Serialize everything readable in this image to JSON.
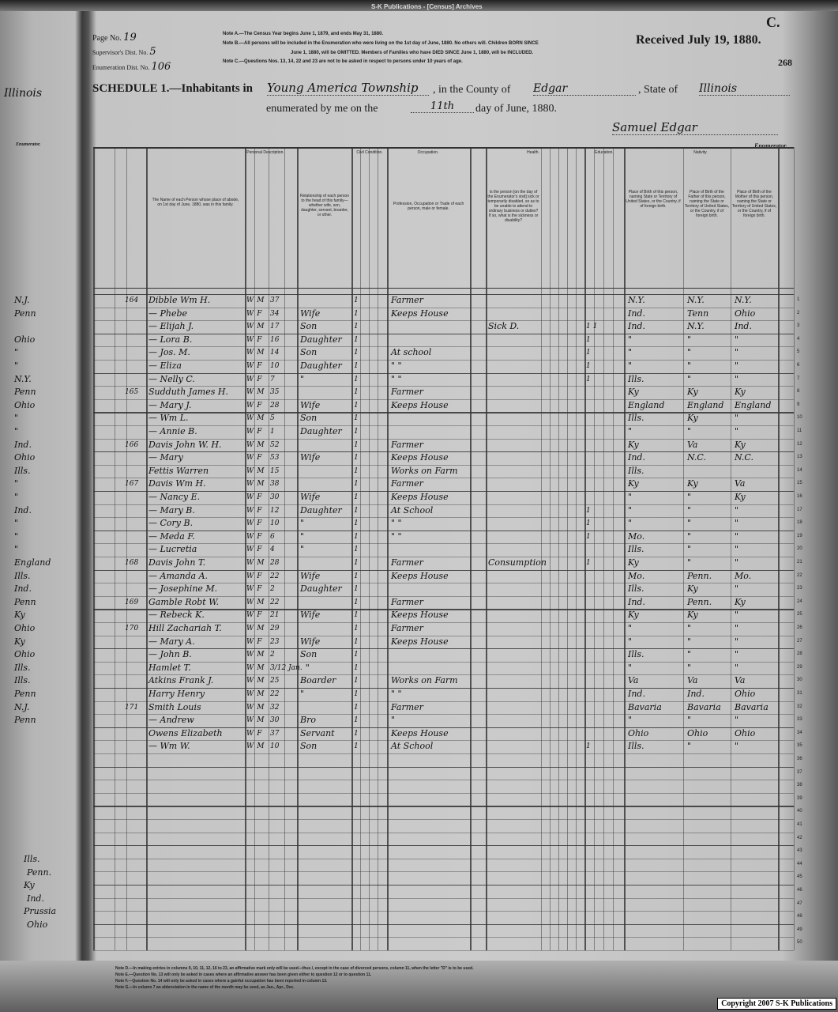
{
  "publisher_header": "S-K Publications - [Census] Archives",
  "form_letter": "C.",
  "received_stamp": "Received July 19, 1880.",
  "stamp_number": "268",
  "page_number_label": "Page No.",
  "page_number": "19",
  "supervisor_label": "Supervisor's Dist. No.",
  "supervisor_dist": "5",
  "enumeration_label": "Enumeration Dist. No.",
  "enumeration_dist": "106",
  "notes": [
    "Note A.—The Census Year begins June 1, 1879, and ends May 31, 1880.",
    "Note B.—All persons will be included in the Enumeration who were living on the 1st day of June, 1880. No others will. Children BORN SINCE",
    "June 1, 1880, will be OMITTED. Members of Families who have DIED SINCE June 1, 1880, will be INCLUDED.",
    "Note C.—Questions Nos. 13, 14, 22 and 23 are not to be asked in respect to persons under 10 years of age."
  ],
  "schedule": {
    "prefix": "SCHEDULE 1.—Inhabitants in",
    "township": "Young America Township",
    "county_label": ", in the County of",
    "county": "Edgar",
    "state_label": ", State of",
    "state": "Illinois",
    "enumerated_label": "enumerated by me on the",
    "day": "11th",
    "day_suffix": "day of June, 1880.",
    "enumerator_signature": "Samuel Edgar",
    "enumerator_label": "Enumerator."
  },
  "column_groups": {
    "personal": "Personal Description.",
    "civil": "Civil Condition.",
    "occupation": "Occupation.",
    "health": "Health.",
    "education": "Education.",
    "nativity": "Nativity.",
    "name_header": "The Name of each Person whose place of abode, on 1st day of June, 1880, was in this family.",
    "relationship_header": "Relationship of each person to the head of this family—whether wife, son, daughter, servant, boarder, or other.",
    "occupation_header": "Profession, Occupation or Trade of each person, male or female.",
    "sickness_header": "Is the person [on the day of the Enumerator's visit] sick or temporarily disabled, so as to be unable to attend to ordinary business or duties? If so, what is the sickness or disability?",
    "birth_header": "Place of Birth of this person, naming State or Territory of United States, or the Country, if of foreign birth.",
    "father_birth_header": "Place of Birth of the Father of this person, naming the State or Territory of United States, or the Country, if of foreign birth.",
    "mother_birth_header": "Place of Birth of the Mother of this person, naming the State or Territory of United States, or the Country, if of foreign birth."
  },
  "rows": [
    {
      "fam": "164",
      "name": "Dibble Wm H.",
      "color": "W",
      "sex": "M",
      "age": "37",
      "rel": "",
      "civil": "1",
      "occ": "Farmer",
      "sick": "",
      "marks": "",
      "birth": "N.Y.",
      "father": "N.Y.",
      "mother": "N.Y."
    },
    {
      "fam": "",
      "name": "— Phebe",
      "color": "W",
      "sex": "F",
      "age": "34",
      "rel": "Wife",
      "civil": "1",
      "occ": "Keeps House",
      "sick": "",
      "marks": "",
      "birth": "Ind.",
      "father": "Tenn",
      "mother": "Ohio"
    },
    {
      "fam": "",
      "name": "— Elijah J.",
      "color": "W",
      "sex": "M",
      "age": "17",
      "rel": "Son",
      "civil": "1",
      "occ": "",
      "sick": "Sick D.",
      "marks": "1 1",
      "birth": "Ind.",
      "father": "N.Y.",
      "mother": "Ind."
    },
    {
      "fam": "",
      "name": "— Lora B.",
      "color": "W",
      "sex": "F",
      "age": "16",
      "rel": "Daughter",
      "civil": "1",
      "occ": "",
      "sick": "",
      "marks": "1",
      "birth": "\"",
      "father": "\"",
      "mother": "\""
    },
    {
      "fam": "",
      "name": "— Jos. M.",
      "color": "W",
      "sex": "M",
      "age": "14",
      "rel": "Son",
      "civil": "1",
      "occ": "At school",
      "sick": "",
      "marks": "1",
      "birth": "\"",
      "father": "\"",
      "mother": "\""
    },
    {
      "fam": "",
      "name": "— Eliza",
      "color": "W",
      "sex": "F",
      "age": "10",
      "rel": "Daughter",
      "civil": "1",
      "occ": "\"  \"",
      "sick": "",
      "marks": "1",
      "birth": "\"",
      "father": "\"",
      "mother": "\""
    },
    {
      "fam": "",
      "name": "— Nelly C.",
      "color": "W",
      "sex": "F",
      "age": "7",
      "rel": "\"",
      "civil": "1",
      "occ": "\"  \"",
      "sick": "",
      "marks": "1",
      "birth": "Ills.",
      "father": "\"",
      "mother": "\""
    },
    {
      "fam": "165",
      "name": "Sudduth James H.",
      "color": "W",
      "sex": "M",
      "age": "35",
      "rel": "",
      "civil": "1",
      "occ": "Farmer",
      "sick": "",
      "marks": "",
      "birth": "Ky",
      "father": "Ky",
      "mother": "Ky"
    },
    {
      "fam": "",
      "name": "— Mary J.",
      "color": "W",
      "sex": "F",
      "age": "28",
      "rel": "Wife",
      "civil": "1",
      "occ": "Keeps House",
      "sick": "",
      "marks": "",
      "birth": "England",
      "father": "England",
      "mother": "England"
    },
    {
      "fam": "",
      "name": "— Wm L.",
      "color": "W",
      "sex": "M",
      "age": "5",
      "rel": "Son",
      "civil": "1",
      "occ": "",
      "sick": "",
      "marks": "",
      "birth": "Ills.",
      "father": "Ky",
      "mother": "\""
    },
    {
      "fam": "",
      "name": "— Annie B.",
      "color": "W",
      "sex": "F",
      "age": "1",
      "rel": "Daughter",
      "civil": "1",
      "occ": "",
      "sick": "",
      "marks": "",
      "birth": "\"",
      "father": "\"",
      "mother": "\""
    },
    {
      "fam": "166",
      "name": "Davis John W. H.",
      "color": "W",
      "sex": "M",
      "age": "52",
      "rel": "",
      "civil": "1",
      "occ": "Farmer",
      "sick": "",
      "marks": "",
      "birth": "Ky",
      "father": "Va",
      "mother": "Ky"
    },
    {
      "fam": "",
      "name": "— Mary",
      "color": "W",
      "sex": "F",
      "age": "53",
      "rel": "Wife",
      "civil": "1",
      "occ": "Keeps House",
      "sick": "",
      "marks": "",
      "birth": "Ind.",
      "father": "N.C.",
      "mother": "N.C."
    },
    {
      "fam": "",
      "name": "Fettis Warren",
      "color": "W",
      "sex": "M",
      "age": "15",
      "rel": "",
      "civil": "1",
      "occ": "Works on Farm",
      "sick": "",
      "marks": "",
      "birth": "Ills.",
      "father": "",
      "mother": ""
    },
    {
      "fam": "167",
      "name": "Davis Wm H.",
      "color": "W",
      "sex": "M",
      "age": "38",
      "rel": "",
      "civil": "1",
      "occ": "Farmer",
      "sick": "",
      "marks": "",
      "birth": "Ky",
      "father": "Ky",
      "mother": "Va"
    },
    {
      "fam": "",
      "name": "— Nancy E.",
      "color": "W",
      "sex": "F",
      "age": "30",
      "rel": "Wife",
      "civil": "1",
      "occ": "Keeps House",
      "sick": "",
      "marks": "",
      "birth": "\"",
      "father": "\"",
      "mother": "Ky"
    },
    {
      "fam": "",
      "name": "— Mary B.",
      "color": "W",
      "sex": "F",
      "age": "12",
      "rel": "Daughter",
      "civil": "1",
      "occ": "At School",
      "sick": "",
      "marks": "1",
      "birth": "\"",
      "father": "\"",
      "mother": "\""
    },
    {
      "fam": "",
      "name": "— Cory B.",
      "color": "W",
      "sex": "F",
      "age": "10",
      "rel": "\"",
      "civil": "1",
      "occ": "\"  \"",
      "sick": "",
      "marks": "1",
      "birth": "\"",
      "father": "\"",
      "mother": "\""
    },
    {
      "fam": "",
      "name": "— Meda F.",
      "color": "W",
      "sex": "F",
      "age": "6",
      "rel": "\"",
      "civil": "1",
      "occ": "\"  \"",
      "sick": "",
      "marks": "1",
      "birth": "Mo.",
      "father": "\"",
      "mother": "\""
    },
    {
      "fam": "",
      "name": "— Lucretia",
      "color": "W",
      "sex": "F",
      "age": "4",
      "rel": "\"",
      "civil": "1",
      "occ": "",
      "sick": "",
      "marks": "",
      "birth": "Ills.",
      "father": "\"",
      "mother": "\""
    },
    {
      "fam": "168",
      "name": "Davis John T.",
      "color": "W",
      "sex": "M",
      "age": "28",
      "rel": "",
      "civil": "1",
      "occ": "Farmer",
      "sick": "Consumption",
      "marks": "1",
      "birth": "Ky",
      "father": "\"",
      "mother": "\""
    },
    {
      "fam": "",
      "name": "— Amanda A.",
      "color": "W",
      "sex": "F",
      "age": "22",
      "rel": "Wife",
      "civil": "1",
      "occ": "Keeps House",
      "sick": "",
      "marks": "",
      "birth": "Mo.",
      "father": "Penn.",
      "mother": "Mo."
    },
    {
      "fam": "",
      "name": "— Josephine M.",
      "color": "W",
      "sex": "F",
      "age": "2",
      "rel": "Daughter",
      "civil": "1",
      "occ": "",
      "sick": "",
      "marks": "",
      "birth": "Ills.",
      "father": "Ky",
      "mother": "\""
    },
    {
      "fam": "169",
      "name": "Gamble Robt W.",
      "color": "W",
      "sex": "M",
      "age": "22",
      "rel": "",
      "civil": "1",
      "occ": "Farmer",
      "sick": "",
      "marks": "",
      "birth": "Ind.",
      "father": "Penn.",
      "mother": "Ky"
    },
    {
      "fam": "",
      "name": "— Rebeck K.",
      "color": "W",
      "sex": "F",
      "age": "21",
      "rel": "Wife",
      "civil": "1",
      "occ": "Keeps House",
      "sick": "",
      "marks": "",
      "birth": "Ky",
      "father": "Ky",
      "mother": "\""
    },
    {
      "fam": "170",
      "name": "Hill Zachariah T.",
      "color": "W",
      "sex": "M",
      "age": "29",
      "rel": "",
      "civil": "1",
      "occ": "Farmer",
      "sick": "",
      "marks": "",
      "birth": "\"",
      "father": "\"",
      "mother": "\""
    },
    {
      "fam": "",
      "name": "— Mary A.",
      "color": "W",
      "sex": "F",
      "age": "23",
      "rel": "Wife",
      "civil": "1",
      "occ": "Keeps House",
      "sick": "",
      "marks": "",
      "birth": "\"",
      "father": "\"",
      "mother": "\""
    },
    {
      "fam": "",
      "name": "— John B.",
      "color": "W",
      "sex": "M",
      "age": "2",
      "rel": "Son",
      "civil": "1",
      "occ": "",
      "sick": "",
      "marks": "",
      "birth": "Ills.",
      "father": "\"",
      "mother": "\""
    },
    {
      "fam": "",
      "name": "Hamlet T.",
      "color": "W",
      "sex": "M",
      "age": "3/12 Jan.",
      "rel": "\"",
      "civil": "1",
      "occ": "",
      "sick": "",
      "marks": "",
      "birth": "\"",
      "father": "\"",
      "mother": "\""
    },
    {
      "fam": "",
      "name": "Atkins Frank J.",
      "color": "W",
      "sex": "M",
      "age": "25",
      "rel": "Boarder",
      "civil": "1",
      "occ": "Works on Farm",
      "sick": "",
      "marks": "",
      "birth": "Va",
      "father": "Va",
      "mother": "Va"
    },
    {
      "fam": "",
      "name": "Harry Henry",
      "color": "W",
      "sex": "M",
      "age": "22",
      "rel": "\"",
      "civil": "1",
      "occ": "\"  \"",
      "sick": "",
      "marks": "",
      "birth": "Ind.",
      "father": "Ind.",
      "mother": "Ohio"
    },
    {
      "fam": "171",
      "name": "Smith Louis",
      "color": "W",
      "sex": "M",
      "age": "32",
      "rel": "",
      "civil": "1",
      "occ": "Farmer",
      "sick": "",
      "marks": "",
      "birth": "Bavaria",
      "father": "Bavaria",
      "mother": "Bavaria"
    },
    {
      "fam": "",
      "name": "— Andrew",
      "color": "W",
      "sex": "M",
      "age": "30",
      "rel": "Bro",
      "civil": "1",
      "occ": "\"",
      "sick": "",
      "marks": "",
      "birth": "\"",
      "father": "\"",
      "mother": "\""
    },
    {
      "fam": "",
      "name": "Owens Elizabeth",
      "color": "W",
      "sex": "F",
      "age": "37",
      "rel": "Servant",
      "civil": "1",
      "occ": "Keeps House",
      "sick": "",
      "marks": "",
      "birth": "Ohio",
      "father": "Ohio",
      "mother": "Ohio"
    },
    {
      "fam": "",
      "name": "— Wm W.",
      "color": "W",
      "sex": "M",
      "age": "10",
      "rel": "Son",
      "civil": "1",
      "occ": "At School",
      "sick": "",
      "marks": "1",
      "birth": "Ills.",
      "father": "\"",
      "mother": "\""
    }
  ],
  "previous_page_column": [
    "N.J.",
    "Penn",
    "",
    "Ohio",
    "\"",
    "\"",
    "N.Y.",
    "Penn",
    "Ohio",
    "\"",
    "\"",
    "Ind.",
    "Ohio",
    "Ills.",
    "\"",
    "\"",
    "Ind.",
    "\"",
    "\"",
    "\"",
    "England",
    "Ills.",
    "Ind.",
    "Penn",
    "Ky",
    "Ohio",
    "Ky",
    "Ohio",
    "Ills.",
    "Ills.",
    "Penn",
    "N.J.",
    "Penn"
  ],
  "previous_page_bottom": [
    "Ills.",
    "Penn.",
    "Ky",
    "Ind.",
    "Prussia",
    "Ohio"
  ],
  "previous_page_enumerator": "Enumerator.",
  "footer_notes": [
    "Note D.—In making entries in columns 9, 10, 11, 12, 16 to 23, an affirmative mark only will be used—thus /, except in the case of divorced persons, column 11, when the letter \"D\" is to be used.",
    "Note E.—Question No. 13 will only be asked in cases where an affirmative answer has been given either to question 12 or to question 11.",
    "Note F.—Question No. 14 will only be asked in cases where a gainful occupation has been reported in column 13.",
    "Note G.—In column 7 an abbreviation in the name of the month may be used, as Jan., Apr., Dec."
  ],
  "copyright": "Copyright 2007 S-K Publications"
}
